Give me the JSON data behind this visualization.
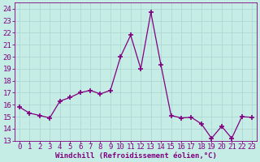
{
  "x": [
    0,
    1,
    2,
    3,
    4,
    5,
    6,
    7,
    8,
    9,
    10,
    11,
    12,
    13,
    14,
    15,
    16,
    17,
    18,
    19,
    20,
    21,
    22,
    23
  ],
  "y": [
    15.8,
    15.3,
    15.1,
    14.9,
    16.3,
    16.6,
    17.0,
    17.2,
    16.9,
    17.2,
    20.0,
    21.8,
    19.0,
    23.7,
    19.3,
    15.1,
    14.9,
    14.95,
    14.4,
    13.2,
    14.2,
    13.2,
    15.0,
    14.95
  ],
  "line_color": "#800080",
  "marker": "D",
  "marker_size": 2.5,
  "bg_color": "#c6ece6",
  "grid_color": "#b0d8d2",
  "xlabel": "Windchill (Refroidissement éolien,°C)",
  "tick_color": "#800080",
  "ylim": [
    13,
    24.5
  ],
  "yticks": [
    13,
    14,
    15,
    16,
    17,
    18,
    19,
    20,
    21,
    22,
    23,
    24
  ],
  "xticks": [
    0,
    1,
    2,
    3,
    4,
    5,
    6,
    7,
    8,
    9,
    10,
    11,
    12,
    13,
    14,
    15,
    16,
    17,
    18,
    19,
    20,
    21,
    22,
    23
  ],
  "font_size": 6.5
}
